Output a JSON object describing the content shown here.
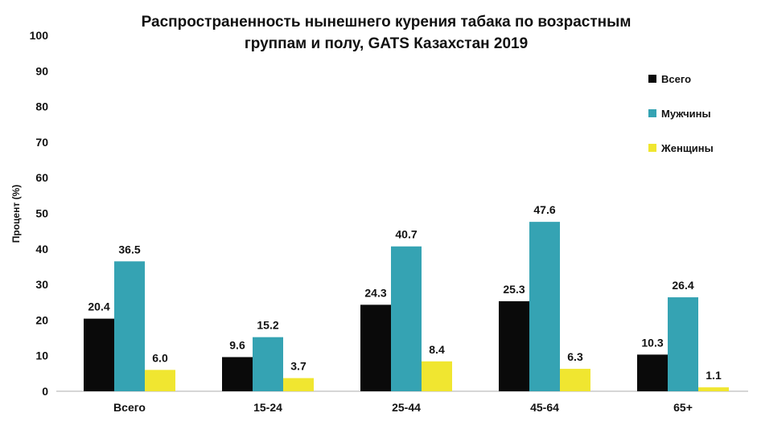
{
  "chart_data": {
    "type": "bar",
    "title_lines": [
      "Распространенность нынешнего курения табака по возрастным",
      "группам и полу, GATS Казахстан 2019"
    ],
    "xlabel": "",
    "ylabel": "Процент (%)",
    "ylim": [
      0,
      100
    ],
    "yticks": [
      0,
      10,
      20,
      30,
      40,
      50,
      60,
      70,
      80,
      90,
      100
    ],
    "categories": [
      "Всего",
      "15-24",
      "25-44",
      "45-64",
      "65+"
    ],
    "series": [
      {
        "name": "Всего",
        "color": "#0a0a0a",
        "values": [
          20.4,
          9.6,
          24.3,
          25.3,
          10.3
        ],
        "labels": [
          "20.4",
          "9.6",
          "24.3",
          "25.3",
          "10.3"
        ]
      },
      {
        "name": "Мужчины",
        "color": "#35a3b3",
        "values": [
          36.5,
          15.2,
          40.7,
          47.6,
          26.4
        ],
        "labels": [
          "36.5",
          "15.2",
          "40.7",
          "47.6",
          "26.4"
        ]
      },
      {
        "name": "Женщины",
        "color": "#f0e630",
        "values": [
          6.0,
          3.7,
          8.4,
          6.3,
          1.1
        ],
        "labels": [
          "6.0",
          "3.7",
          "8.4",
          "6.3",
          "1.1"
        ]
      }
    ],
    "legend_position": "top-right",
    "grid": false,
    "data_labels": true
  }
}
